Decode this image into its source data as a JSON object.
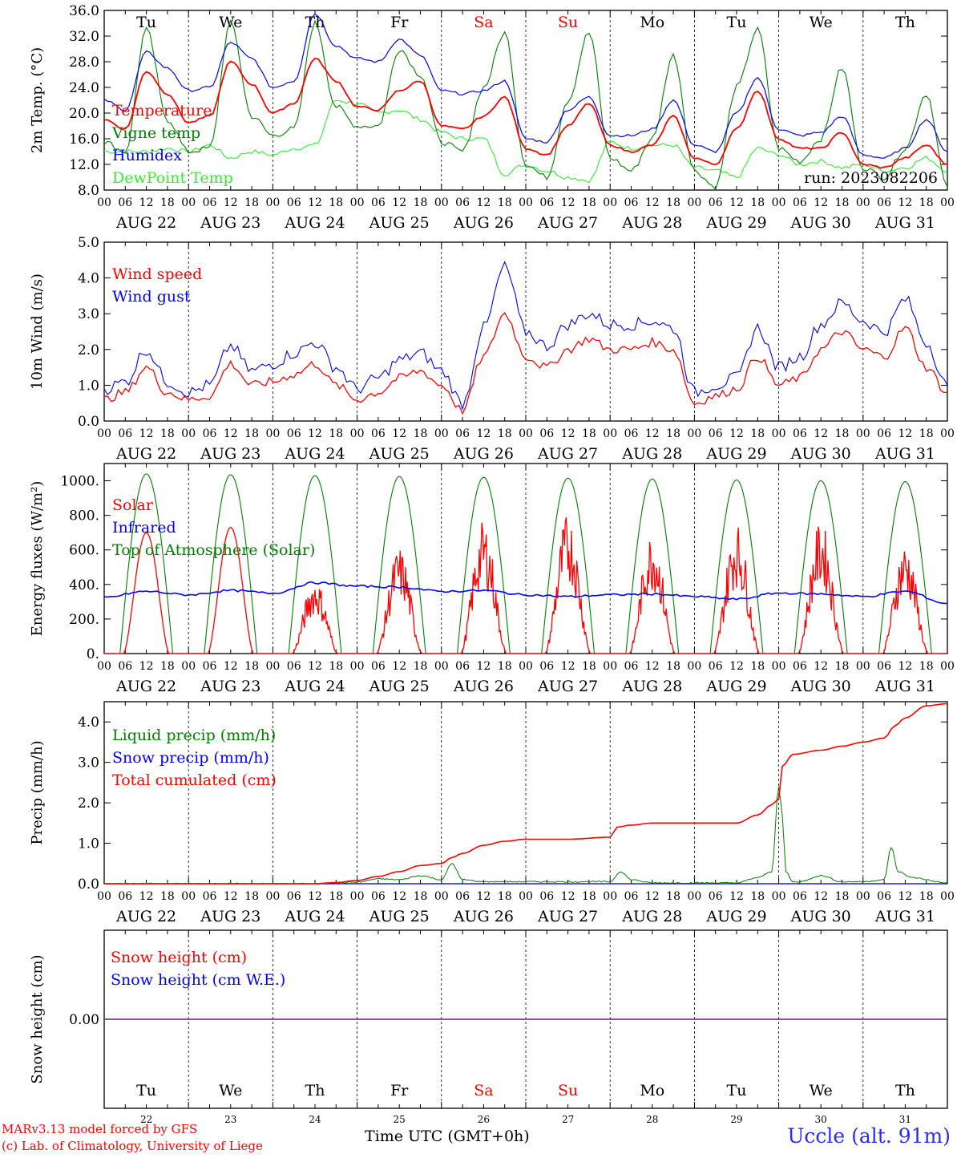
{
  "chart_data": [
    {
      "type": "line",
      "ylabel": "2m Temp. (°C)",
      "ylim": [
        8.0,
        36.0
      ],
      "yticks": [
        "8.0",
        "12.0",
        "16.0",
        "20.0",
        "24.0",
        "28.0",
        "32.0",
        "36.0"
      ],
      "run_label": "run: 2023082206",
      "series": [
        {
          "name": "Temperature",
          "color": "#ff0000",
          "x": [
            0,
            6,
            12,
            18,
            24,
            30,
            36,
            42,
            48,
            54,
            60,
            66,
            72,
            78,
            84,
            90,
            96,
            102,
            108,
            114,
            120,
            126,
            132,
            138,
            144,
            150,
            156,
            162,
            168,
            174,
            180,
            186,
            192,
            198,
            204,
            210,
            216,
            222,
            228,
            234,
            240
          ],
          "y": [
            19.0,
            17.5,
            26.5,
            23.0,
            18.5,
            19.5,
            28.0,
            24.5,
            20.0,
            21.5,
            28.5,
            25.0,
            21.0,
            20.5,
            23.5,
            25.0,
            18.0,
            17.5,
            19.5,
            22.5,
            14.5,
            13.5,
            18.0,
            21.5,
            15.0,
            14.0,
            15.0,
            19.5,
            13.0,
            12.0,
            17.5,
            23.5,
            16.0,
            14.5,
            14.5,
            17.0,
            12.0,
            11.5,
            13.0,
            15.0,
            12.0
          ]
        },
        {
          "name": "Vigne temp",
          "color": "#008000",
          "x": [
            0,
            6,
            12,
            18,
            24,
            30,
            36,
            42,
            48,
            54,
            60,
            66,
            72,
            78,
            84,
            90,
            96,
            102,
            108,
            114,
            120,
            126,
            132,
            138,
            144,
            150,
            156,
            162,
            168,
            174,
            180,
            186,
            192,
            198,
            204,
            210,
            216,
            222,
            228,
            234,
            240
          ],
          "y": [
            15.5,
            14.0,
            33.0,
            19.0,
            14.0,
            14.5,
            34.0,
            19.5,
            16.5,
            17.5,
            34.0,
            21.0,
            18.0,
            18.0,
            30.0,
            26.0,
            15.5,
            14.0,
            24.0,
            32.5,
            12.0,
            10.0,
            22.0,
            32.5,
            13.0,
            11.0,
            16.0,
            29.0,
            11.0,
            8.5,
            24.0,
            33.0,
            14.5,
            12.5,
            16.0,
            27.0,
            11.5,
            10.0,
            14.5,
            23.0,
            8.5
          ]
        },
        {
          "name": "Humidex",
          "color": "#0000ff",
          "x": [
            0,
            6,
            12,
            18,
            24,
            30,
            36,
            42,
            48,
            54,
            60,
            66,
            72,
            78,
            84,
            90,
            96,
            102,
            108,
            114,
            120,
            126,
            132,
            138,
            144,
            150,
            156,
            162,
            168,
            174,
            180,
            186,
            192,
            198,
            204,
            210,
            216,
            222,
            228,
            234,
            240
          ],
          "y": [
            22.0,
            20.5,
            29.5,
            27.0,
            23.5,
            24.0,
            31.0,
            28.5,
            24.0,
            25.0,
            35.5,
            30.5,
            28.5,
            28.0,
            31.5,
            29.0,
            23.5,
            23.0,
            23.5,
            25.0,
            16.0,
            15.5,
            20.5,
            22.5,
            16.5,
            16.5,
            17.5,
            22.0,
            15.0,
            14.0,
            20.0,
            25.5,
            17.5,
            16.5,
            17.0,
            19.5,
            13.5,
            13.0,
            14.5,
            19.0,
            14.0
          ]
        },
        {
          "name": "DewPoint Temp",
          "color": "#33ee33",
          "x": [
            0,
            6,
            12,
            18,
            24,
            30,
            36,
            42,
            48,
            54,
            60,
            66,
            72,
            78,
            84,
            90,
            96,
            102,
            108,
            114,
            120,
            126,
            132,
            138,
            144,
            150,
            156,
            162,
            168,
            174,
            180,
            186,
            192,
            198,
            204,
            210,
            216,
            222,
            228,
            234,
            240
          ],
          "y": [
            14.0,
            14.0,
            14.0,
            14.5,
            14.0,
            15.0,
            13.0,
            14.0,
            13.5,
            14.5,
            15.0,
            22.0,
            21.5,
            20.0,
            20.5,
            19.0,
            17.0,
            16.0,
            16.0,
            10.5,
            12.0,
            11.0,
            10.0,
            9.5,
            15.5,
            14.5,
            15.0,
            15.0,
            11.5,
            11.0,
            10.0,
            14.5,
            13.5,
            12.0,
            12.5,
            11.5,
            12.0,
            11.0,
            11.5,
            13.0,
            11.0
          ]
        }
      ]
    },
    {
      "type": "line",
      "ylabel": "10m Wind (m/s)",
      "ylim": [
        0.0,
        5.0
      ],
      "yticks": [
        "0.0",
        "1.0",
        "2.0",
        "3.0",
        "4.0",
        "5.0"
      ],
      "series": [
        {
          "name": "Wind speed",
          "color": "#ff0000",
          "x": [
            0,
            6,
            12,
            18,
            24,
            30,
            36,
            42,
            48,
            54,
            60,
            66,
            72,
            78,
            84,
            90,
            96,
            102,
            108,
            114,
            120,
            126,
            132,
            138,
            144,
            150,
            156,
            162,
            168,
            174,
            180,
            186,
            192,
            198,
            204,
            210,
            216,
            222,
            228,
            234,
            240
          ],
          "y": [
            0.6,
            0.8,
            1.5,
            0.8,
            0.6,
            0.7,
            1.6,
            1.0,
            1.1,
            1.3,
            1.6,
            1.0,
            0.6,
            0.8,
            1.2,
            1.4,
            1.0,
            0.3,
            1.8,
            3.0,
            1.8,
            1.5,
            2.0,
            2.3,
            2.0,
            2.0,
            2.2,
            2.0,
            0.5,
            0.7,
            0.9,
            1.8,
            1.0,
            1.2,
            2.0,
            2.5,
            2.0,
            1.8,
            2.6,
            1.5,
            0.8
          ]
        },
        {
          "name": "Wind gust",
          "color": "#0000ff",
          "x": [
            0,
            6,
            12,
            18,
            24,
            30,
            36,
            42,
            48,
            54,
            60,
            66,
            72,
            78,
            84,
            90,
            96,
            102,
            108,
            114,
            120,
            126,
            132,
            138,
            144,
            150,
            156,
            162,
            168,
            174,
            180,
            186,
            192,
            198,
            204,
            210,
            216,
            222,
            228,
            234,
            240
          ],
          "y": [
            0.9,
            1.1,
            2.0,
            1.1,
            0.8,
            1.0,
            2.1,
            1.4,
            1.6,
            1.9,
            2.2,
            1.5,
            0.9,
            1.2,
            1.7,
            1.9,
            1.4,
            0.5,
            2.6,
            4.3,
            2.5,
            2.1,
            2.7,
            3.0,
            2.7,
            2.7,
            2.8,
            2.6,
            0.8,
            1.0,
            1.2,
            2.6,
            1.5,
            1.8,
            2.7,
            3.3,
            2.8,
            2.5,
            3.4,
            2.2,
            1.0
          ]
        }
      ]
    },
    {
      "type": "line",
      "ylabel": "Energy fluxes (W/m²)",
      "ylim": [
        0,
        1100
      ],
      "yticks": [
        "0.",
        "200.",
        "400.",
        "600.",
        "800.",
        "1000."
      ],
      "series": [
        {
          "name": "Solar",
          "color": "#ff0000",
          "daily_peak": [
            700,
            730,
            400,
            560,
            700,
            740,
            650,
            690,
            700,
            590
          ]
        },
        {
          "name": "Infrared",
          "color": "#0000ff",
          "x": [
            0,
            12,
            24,
            36,
            48,
            60,
            72,
            84,
            96,
            108,
            120,
            132,
            144,
            156,
            168,
            180,
            192,
            204,
            216,
            228,
            240
          ],
          "y": [
            325,
            360,
            340,
            365,
            350,
            410,
            390,
            385,
            360,
            365,
            340,
            330,
            340,
            345,
            330,
            315,
            350,
            345,
            330,
            360,
            290
          ]
        },
        {
          "name": "Top of Atmosphere (Solar)",
          "color": "#008000",
          "daily_peak": [
            1040,
            1035,
            1030,
            1025,
            1020,
            1015,
            1010,
            1005,
            1000,
            995
          ]
        }
      ]
    },
    {
      "type": "line",
      "ylabel": "Precip (mm/h)",
      "ylim": [
        0.0,
        4.5
      ],
      "yticks": [
        "0.0",
        "1.0",
        "2.0",
        "3.0",
        "4.0"
      ],
      "series": [
        {
          "name": "Liquid precip (mm/h)",
          "color": "#008000",
          "x": [
            0,
            60,
            66,
            72,
            78,
            84,
            90,
            96,
            99,
            102,
            108,
            144,
            147,
            150,
            156,
            180,
            186,
            190,
            192,
            193,
            194,
            196,
            198,
            204,
            210,
            216,
            222,
            224,
            226,
            230,
            240
          ],
          "y": [
            0,
            0,
            0.02,
            0.04,
            0.12,
            0.1,
            0.2,
            0.1,
            0.5,
            0.1,
            0.05,
            0.05,
            0.3,
            0.1,
            0.02,
            0.02,
            0.15,
            0.3,
            2.4,
            1.7,
            0.3,
            0.05,
            0.05,
            0.2,
            0.05,
            0.05,
            0.1,
            0.9,
            0.3,
            0.15,
            0.02
          ]
        },
        {
          "name": "Snow precip (mm/h)",
          "color": "#0000ff",
          "x": [
            0,
            240
          ],
          "y": [
            0,
            0
          ]
        },
        {
          "name": "Total cumulated (cm)",
          "color": "#ff0000",
          "x": [
            0,
            60,
            66,
            72,
            78,
            84,
            90,
            96,
            99,
            102,
            108,
            114,
            120,
            132,
            144,
            146,
            150,
            156,
            168,
            180,
            186,
            190,
            192,
            193,
            196,
            204,
            210,
            216,
            222,
            225,
            228,
            234,
            240
          ],
          "y": [
            0,
            0,
            0.03,
            0.08,
            0.18,
            0.3,
            0.45,
            0.5,
            0.65,
            0.75,
            0.95,
            1.05,
            1.1,
            1.1,
            1.15,
            1.4,
            1.45,
            1.5,
            1.5,
            1.5,
            1.7,
            1.95,
            2.1,
            2.9,
            3.2,
            3.3,
            3.4,
            3.5,
            3.6,
            3.9,
            4.1,
            4.4,
            4.45
          ]
        }
      ]
    },
    {
      "type": "line",
      "ylabel": "Snow height (cm)",
      "ytick": "0.00",
      "series": [
        {
          "name": "Snow height (cm)",
          "color": "#ff0000",
          "x": [
            0,
            240
          ],
          "y": [
            0,
            0
          ]
        },
        {
          "name": "Snow height (cm W.E.)",
          "color": "#0000ff",
          "x": [
            0,
            240
          ],
          "y": [
            0,
            0
          ]
        }
      ]
    }
  ],
  "x_hour_ticks": [
    "00",
    "06",
    "12",
    "18"
  ],
  "x_end_tick": "00",
  "date_labels": [
    "AUG 22",
    "AUG 23",
    "AUG 24",
    "AUG 25",
    "AUG 26",
    "AUG 27",
    "AUG 28",
    "AUG 29",
    "AUG 30",
    "AUG 31"
  ],
  "weekdays": [
    "Tu",
    "We",
    "Th",
    "Fr",
    "Sa",
    "Su",
    "Mo",
    "Tu",
    "We",
    "Th"
  ],
  "weekend_color": "#ff0000",
  "weekday_color": "#000000",
  "day_numbers": [
    "22",
    "23",
    "24",
    "25",
    "26",
    "27",
    "28",
    "29",
    "30",
    "31"
  ],
  "footer": {
    "credit_line1": "MARv3.13 model forced by GFS",
    "credit_line2": "(c) Lab. of Climatology, University of Liege",
    "xlabel": "Time UTC (GMT+0h)",
    "station": "Uccle (alt. 91m)"
  }
}
